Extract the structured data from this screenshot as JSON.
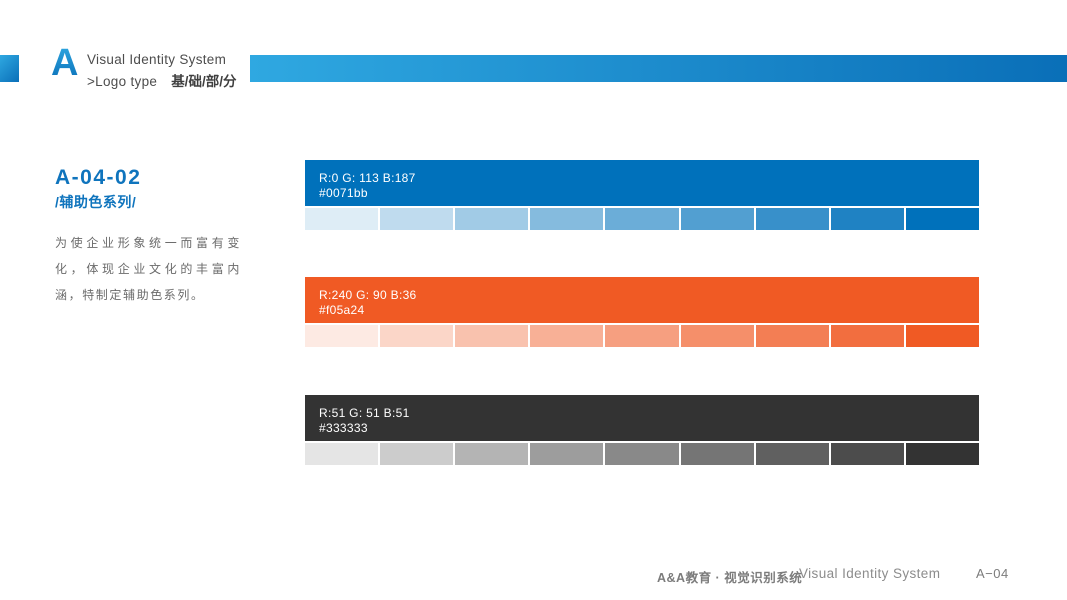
{
  "header": {
    "logo_letter": "A",
    "title_line1": "Visual Identity System",
    "title_line2": ">Logo type",
    "title_line2_cn": "基/础/部/分"
  },
  "section": {
    "code": "A-04-02",
    "subtitle": "/辅助色系列/",
    "description": "为使企业形象统一而富有变化，体现企业文化的丰富内涵，特制定辅助色系列。"
  },
  "palette": {
    "tint_steps": [
      0.13,
      0.25,
      0.37,
      0.48,
      0.58,
      0.68,
      0.78,
      0.88,
      1
    ],
    "colors": [
      {
        "rgb_label": "R:0 G: 113 B:187",
        "hex_label": "#0071bb",
        "hex": "#0071bb"
      },
      {
        "rgb_label": "R:240 G: 90 B:36",
        "hex_label": "#f05a24",
        "hex": "#f05a24"
      },
      {
        "rgb_label": "R:51 G: 51 B:51",
        "hex_label": "#333333",
        "hex": "#333333"
      }
    ]
  },
  "footer": {
    "brand_cn": "A&A教育 · 视觉识别系统",
    "brand_en": "Visual Identity System",
    "page_number": "A−04"
  },
  "theme": {
    "accent_blue": "#0f74bd",
    "topbar_gradient_start": "#2fa8e1",
    "topbar_gradient_end": "#0a6fb8"
  }
}
